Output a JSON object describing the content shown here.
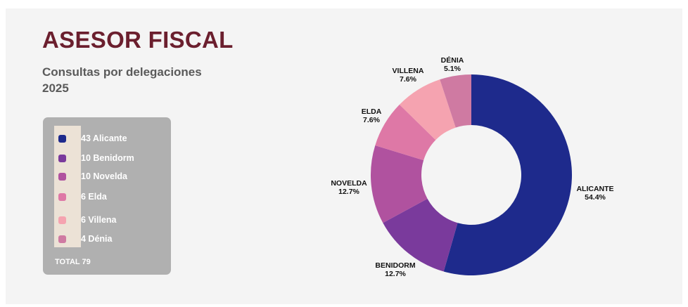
{
  "title": "ASESOR FISCAL",
  "subtitle_line1": "Consultas por delegaciones",
  "subtitle_line2": "2025",
  "legend": {
    "items": [
      {
        "label": "43 Alicante",
        "color": "#1e2a8c"
      },
      {
        "label": "10 Benidorm",
        "color": "#7a3a9c"
      },
      {
        "label": "10 Novelda",
        "color": "#b0529f"
      },
      {
        "label": "6 Elda",
        "color": "#de78a6"
      },
      {
        "label": "6 Villena",
        "color": "#f5a3b0"
      },
      {
        "label": "4 Dénia",
        "color": "#cf7aa2"
      }
    ],
    "total": "TOTAL 79"
  },
  "chart_data": {
    "type": "pie",
    "donut": true,
    "categories": [
      "ALICANTE",
      "BENIDORM",
      "NOVELDA",
      "ELDA",
      "VILLENA",
      "DÉNIA"
    ],
    "values": [
      43,
      10,
      10,
      6,
      6,
      4
    ],
    "percent_labels": [
      "54.4%",
      "12.7%",
      "12.7%",
      "7.6%",
      "7.6%",
      "5.1%"
    ],
    "colors": [
      "#1e2a8c",
      "#7a3a9c",
      "#b0529f",
      "#de78a6",
      "#f5a3b0",
      "#cf7aa2"
    ],
    "start": "12 o'clock",
    "direction": "clockwise"
  }
}
